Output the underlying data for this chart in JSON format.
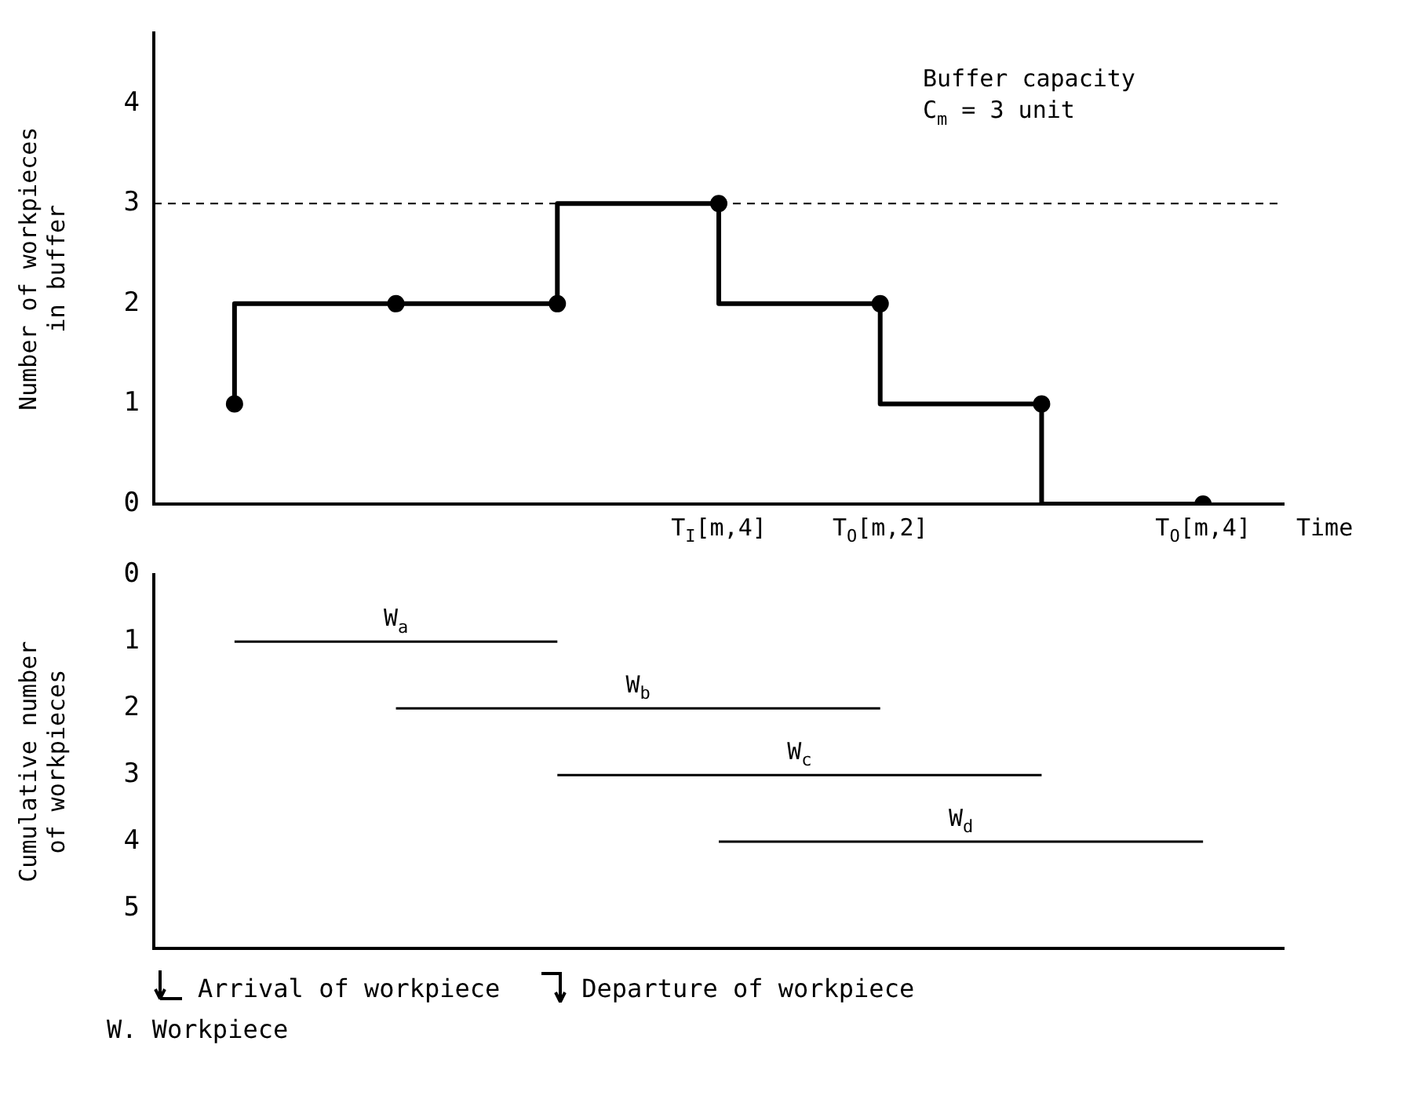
{
  "chart_data": [
    {
      "type": "step",
      "xlabel": "Time",
      "ylabel": "Number of workpieces in buffer",
      "categories": [
        null,
        null,
        null,
        "T$_{I}$[m,4]",
        "T$_{O}$[m,2]",
        null,
        "T$_{O}$[m,4]"
      ],
      "series": [
        {
          "color": "#000000",
          "values": [
            1,
            2,
            2,
            3,
            2,
            1,
            0
          ]
        }
      ],
      "ylim": [
        0,
        4.7
      ],
      "yticks": [
        0,
        1,
        2,
        3,
        4
      ],
      "marker": "circle",
      "ref_lines": [
        {
          "axis": "y",
          "value": 3,
          "line_style": "dashed",
          "color": "#000000"
        }
      ],
      "annotations": [
        "Buffer capacity",
        "C$_{m}$ = 3 unit"
      ]
    },
    {
      "type": "line",
      "ylabel": "Cumulative number of workpieces",
      "categories": [
        null,
        null,
        null,
        null,
        null,
        null,
        null
      ],
      "series": [
        {
          "name": "W$_{a}$",
          "color": "#000000",
          "values": [
            1,
            null,
            1,
            null,
            null,
            null,
            null
          ]
        },
        {
          "name": "W$_{b}$",
          "color": "#000000",
          "values": [
            null,
            2,
            null,
            null,
            2,
            null,
            null
          ]
        },
        {
          "name": "W$_{c}$",
          "color": "#000000",
          "values": [
            null,
            null,
            3,
            null,
            null,
            3,
            null
          ]
        },
        {
          "name": "W$_{d}$",
          "color": "#000000",
          "values": [
            null,
            null,
            null,
            4,
            null,
            null,
            4
          ]
        }
      ],
      "ylim": [
        5.6,
        0
      ],
      "yticks": [
        0,
        1,
        2,
        3,
        4,
        5
      ],
      "annotations": [
        "Arrival of workpiece",
        "Departure of workpiece",
        "W. Workpiece"
      ]
    }
  ]
}
